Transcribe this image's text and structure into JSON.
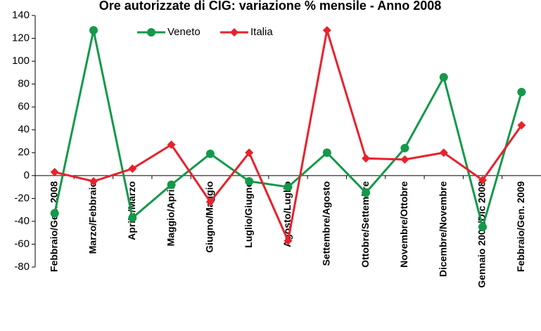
{
  "chart_data": {
    "type": "line",
    "title": "Ore autorizzate di CIG: variazione % mensile - Anno 2008",
    "categories": [
      "Febbraio/Gen. 2008",
      "Marzo/Febbraio",
      "Aprile/Marzo",
      "Maggio/Aprile",
      "Giugno/Maggio",
      "Luglio/Giugno",
      "Agosto/Luglio",
      "Settembre/Agosto",
      "Ottobre/Settembre",
      "Novembre/Ottobre",
      "Dicembre/Novembre",
      "Gennaio 2009/Dic 2008",
      "Febbraio/Gen. 2009"
    ],
    "series": [
      {
        "name": "Veneto",
        "color": "#14994a",
        "marker": "circle",
        "values": [
          -33,
          127,
          -37,
          -8,
          19,
          -5,
          -10,
          20,
          -15,
          24,
          86,
          -45,
          73
        ]
      },
      {
        "name": "Italia",
        "color": "#e8222c",
        "marker": "diamond",
        "values": [
          3,
          -5,
          6,
          27,
          -23,
          20,
          -57,
          127,
          15,
          14,
          20,
          -4,
          44
        ]
      }
    ],
    "ylim": [
      -80,
      140
    ],
    "yticks": [
      -80,
      -60,
      -40,
      -20,
      0,
      20,
      40,
      60,
      80,
      100,
      120,
      140
    ],
    "grid": false,
    "legend": "top"
  }
}
